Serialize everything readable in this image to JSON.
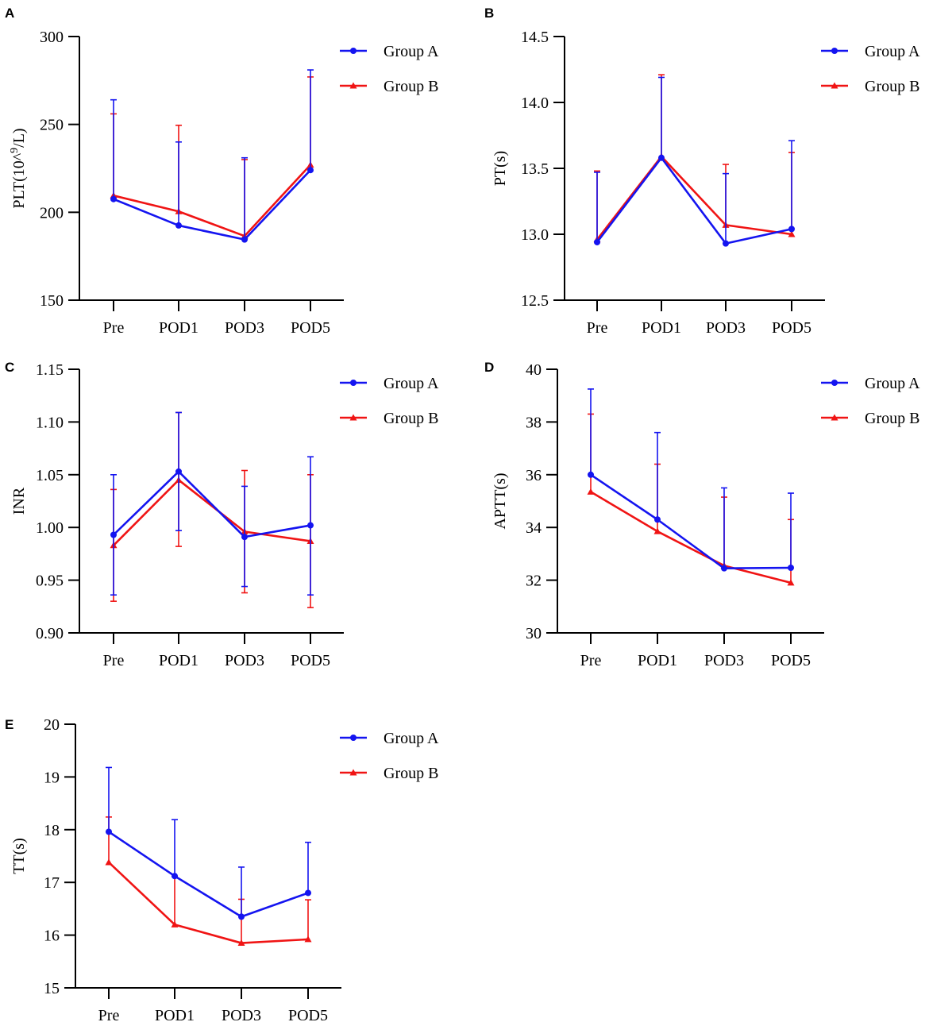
{
  "colors": {
    "group_a": "#1414f0",
    "group_b": "#f01414"
  },
  "chart_data": [
    {
      "panel": "A",
      "type": "line",
      "ylabel": "PLT(10^9/L)",
      "ylabel_parts": {
        "base": "PLT(10^",
        "sup": "9",
        "tail": "/L)"
      },
      "categories": [
        "Pre",
        "POD1",
        "POD3",
        "POD5"
      ],
      "ylim": [
        150,
        300
      ],
      "yticks": [
        "150",
        "200",
        "250",
        "300"
      ],
      "series": [
        {
          "name": "Group A",
          "values": [
            207.5,
            192.5,
            184.5,
            224
          ],
          "error_upper": [
            264,
            240,
            231,
            281
          ]
        },
        {
          "name": "Group B",
          "values": [
            209.5,
            200.5,
            186.5,
            227
          ],
          "error_upper": [
            256,
            249.5,
            230,
            277
          ]
        }
      ]
    },
    {
      "panel": "B",
      "type": "line",
      "ylabel": "PT(s)",
      "categories": [
        "Pre",
        "POD1",
        "POD3",
        "POD5"
      ],
      "ylim": [
        12.5,
        14.5
      ],
      "yticks": [
        "12.5",
        "13.0",
        "13.5",
        "14.0",
        "14.5"
      ],
      "series": [
        {
          "name": "Group A",
          "values": [
            12.94,
            13.58,
            12.93,
            13.04
          ],
          "error_upper": [
            13.47,
            14.19,
            13.46,
            13.71
          ]
        },
        {
          "name": "Group B",
          "values": [
            12.96,
            13.59,
            13.07,
            13.0
          ],
          "error_upper": [
            13.48,
            14.21,
            13.53,
            13.62
          ]
        }
      ]
    },
    {
      "panel": "C",
      "type": "line",
      "ylabel": "INR",
      "categories": [
        "Pre",
        "POD1",
        "POD3",
        "POD5"
      ],
      "ylim": [
        0.9,
        1.15
      ],
      "yticks": [
        "0.90",
        "0.95",
        "1.00",
        "1.05",
        "1.10",
        "1.15"
      ],
      "series": [
        {
          "name": "Group A",
          "values": [
            0.993,
            1.053,
            0.991,
            1.002
          ],
          "error_lower": [
            0.936,
            0.997,
            0.944,
            0.936
          ],
          "error_upper": [
            1.05,
            1.109,
            1.039,
            1.067
          ]
        },
        {
          "name": "Group B",
          "values": [
            0.983,
            1.045,
            0.996,
            0.987
          ],
          "error_lower": [
            0.93,
            0.982,
            0.938,
            0.924
          ],
          "error_upper": [
            1.036,
            1.109,
            1.054,
            1.05
          ]
        }
      ]
    },
    {
      "panel": "D",
      "type": "line",
      "ylabel": "APTT(s)",
      "categories": [
        "Pre",
        "POD1",
        "POD3",
        "POD5"
      ],
      "ylim": [
        30,
        40
      ],
      "yticks": [
        "30",
        "32",
        "34",
        "36",
        "38",
        "40"
      ],
      "series": [
        {
          "name": "Group A",
          "values": [
            36.0,
            34.3,
            32.45,
            32.47
          ],
          "error_upper": [
            39.25,
            37.6,
            35.5,
            35.3
          ]
        },
        {
          "name": "Group B",
          "values": [
            35.35,
            33.85,
            32.55,
            31.9
          ],
          "error_upper": [
            38.3,
            36.4,
            35.15,
            34.3
          ]
        }
      ]
    },
    {
      "panel": "E",
      "type": "line",
      "ylabel": "TT(s)",
      "categories": [
        "Pre",
        "POD1",
        "POD3",
        "POD5"
      ],
      "ylim": [
        15,
        20
      ],
      "yticks": [
        "15",
        "16",
        "17",
        "18",
        "19",
        "20"
      ],
      "series": [
        {
          "name": "Group A",
          "values": [
            17.96,
            17.12,
            16.35,
            16.8
          ],
          "error_upper": [
            19.18,
            18.19,
            17.29,
            17.76
          ]
        },
        {
          "name": "Group B",
          "values": [
            17.38,
            16.2,
            15.85,
            15.92
          ],
          "error_upper": [
            18.24,
            17.12,
            16.68,
            16.67
          ]
        }
      ]
    }
  ]
}
